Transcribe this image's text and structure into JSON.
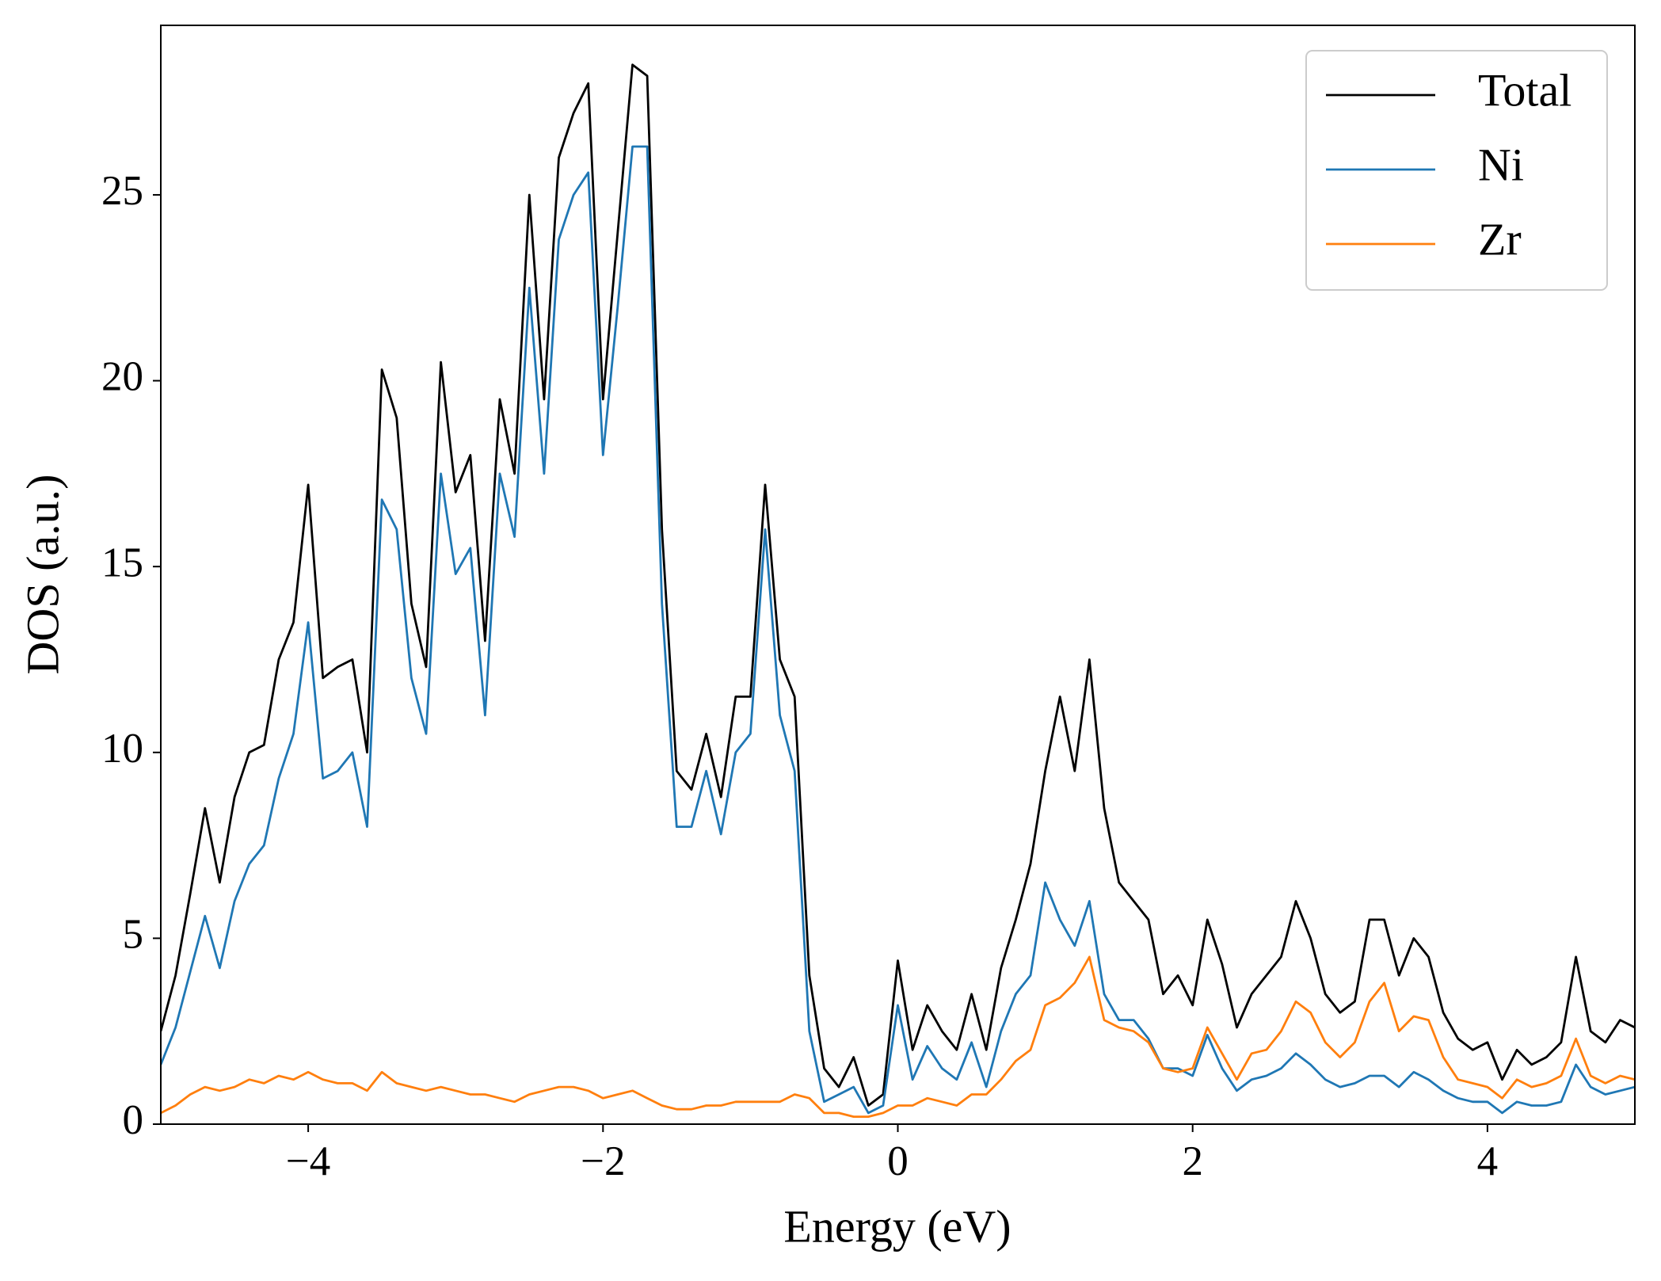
{
  "chart_data": {
    "type": "line",
    "xlabel": "Energy (eV)",
    "ylabel": "DOS (a.u.)",
    "x": [
      -5.0,
      -4.9,
      -4.8,
      -4.7,
      -4.6,
      -4.5,
      -4.4,
      -4.3,
      -4.2,
      -4.1,
      -4.0,
      -3.9,
      -3.8,
      -3.7,
      -3.6,
      -3.5,
      -3.4,
      -3.3,
      -3.2,
      -3.1,
      -3.0,
      -2.9,
      -2.8,
      -2.7,
      -2.6,
      -2.5,
      -2.4,
      -2.3,
      -2.2,
      -2.1,
      -2.0,
      -1.9,
      -1.8,
      -1.7,
      -1.6,
      -1.5,
      -1.4,
      -1.3,
      -1.2,
      -1.1,
      -1.0,
      -0.9,
      -0.8,
      -0.7,
      -0.6,
      -0.5,
      -0.4,
      -0.3,
      -0.2,
      -0.1,
      0.0,
      0.1,
      0.2,
      0.3,
      0.4,
      0.5,
      0.6,
      0.7,
      0.8,
      0.9,
      1.0,
      1.1,
      1.2,
      1.3,
      1.4,
      1.5,
      1.6,
      1.7,
      1.8,
      1.9,
      2.0,
      2.1,
      2.2,
      2.3,
      2.4,
      2.5,
      2.6,
      2.7,
      2.8,
      2.9,
      3.0,
      3.1,
      3.2,
      3.3,
      3.4,
      3.5,
      3.6,
      3.7,
      3.8,
      3.9,
      4.0,
      4.1,
      4.2,
      4.3,
      4.4,
      4.5,
      4.6,
      4.7,
      4.8,
      4.9,
      5.0
    ],
    "series": [
      {
        "name": "Total",
        "color": "#000000",
        "values": [
          2.5,
          4.0,
          6.2,
          8.5,
          6.5,
          8.8,
          10.0,
          10.2,
          12.5,
          13.5,
          17.2,
          12.0,
          12.3,
          12.5,
          10.0,
          20.3,
          19.0,
          14.0,
          12.3,
          20.5,
          17.0,
          18.0,
          13.0,
          19.5,
          17.5,
          25.0,
          19.5,
          26.0,
          27.2,
          28.0,
          19.5,
          24.0,
          28.5,
          28.2,
          16.0,
          9.5,
          9.0,
          10.5,
          8.8,
          11.5,
          11.5,
          17.2,
          12.5,
          11.5,
          4.0,
          1.5,
          1.0,
          1.8,
          0.5,
          0.8,
          4.4,
          2.0,
          3.2,
          2.5,
          2.0,
          3.5,
          2.0,
          4.2,
          5.5,
          7.0,
          9.5,
          11.5,
          9.5,
          12.5,
          8.5,
          6.5,
          6.0,
          5.5,
          3.5,
          4.0,
          3.2,
          5.5,
          4.3,
          2.6,
          3.5,
          4.0,
          4.5,
          6.0,
          5.0,
          3.5,
          3.0,
          3.3,
          5.5,
          5.5,
          4.0,
          5.0,
          4.5,
          3.0,
          2.3,
          2.0,
          2.2,
          1.2,
          2.0,
          1.6,
          1.8,
          2.2,
          4.5,
          2.5,
          2.2,
          2.8,
          2.6
        ]
      },
      {
        "name": "Ni",
        "color": "#1f77b4",
        "values": [
          1.6,
          2.6,
          4.1,
          5.6,
          4.2,
          6.0,
          7.0,
          7.5,
          9.3,
          10.5,
          13.5,
          9.3,
          9.5,
          10.0,
          8.0,
          16.8,
          16.0,
          12.0,
          10.5,
          17.5,
          14.8,
          15.5,
          11.0,
          17.5,
          15.8,
          22.5,
          17.5,
          23.8,
          25.0,
          25.6,
          18.0,
          22.0,
          26.3,
          26.3,
          14.0,
          8.0,
          8.0,
          9.5,
          7.8,
          10.0,
          10.5,
          16.0,
          11.0,
          9.5,
          2.5,
          0.6,
          0.8,
          1.0,
          0.3,
          0.5,
          3.2,
          1.2,
          2.1,
          1.5,
          1.2,
          2.2,
          1.0,
          2.5,
          3.5,
          4.0,
          6.5,
          5.5,
          4.8,
          6.0,
          3.5,
          2.8,
          2.8,
          2.3,
          1.5,
          1.5,
          1.3,
          2.4,
          1.5,
          0.9,
          1.2,
          1.3,
          1.5,
          1.9,
          1.6,
          1.2,
          1.0,
          1.1,
          1.3,
          1.3,
          1.0,
          1.4,
          1.2,
          0.9,
          0.7,
          0.6,
          0.6,
          0.3,
          0.6,
          0.5,
          0.5,
          0.6,
          1.6,
          1.0,
          0.8,
          0.9,
          1.0
        ]
      },
      {
        "name": "Zr",
        "color": "#ff7f0e",
        "values": [
          0.3,
          0.5,
          0.8,
          1.0,
          0.9,
          1.0,
          1.2,
          1.1,
          1.3,
          1.2,
          1.4,
          1.2,
          1.1,
          1.1,
          0.9,
          1.4,
          1.1,
          1.0,
          0.9,
          1.0,
          0.9,
          0.8,
          0.8,
          0.7,
          0.6,
          0.8,
          0.9,
          1.0,
          1.0,
          0.9,
          0.7,
          0.8,
          0.9,
          0.7,
          0.5,
          0.4,
          0.4,
          0.5,
          0.5,
          0.6,
          0.6,
          0.6,
          0.6,
          0.8,
          0.7,
          0.3,
          0.3,
          0.2,
          0.2,
          0.3,
          0.5,
          0.5,
          0.7,
          0.6,
          0.5,
          0.8,
          0.8,
          1.2,
          1.7,
          2.0,
          3.2,
          3.4,
          3.8,
          4.5,
          2.8,
          2.6,
          2.5,
          2.2,
          1.5,
          1.4,
          1.5,
          2.6,
          1.9,
          1.2,
          1.9,
          2.0,
          2.5,
          3.3,
          3.0,
          2.2,
          1.8,
          2.2,
          3.3,
          3.8,
          2.5,
          2.9,
          2.8,
          1.8,
          1.2,
          1.1,
          1.0,
          0.7,
          1.2,
          1.0,
          1.1,
          1.3,
          2.3,
          1.3,
          1.1,
          1.3,
          1.2
        ]
      }
    ],
    "xlim": [
      -5,
      5
    ],
    "xticks": [
      {
        "value": -4,
        "label": "−4"
      },
      {
        "value": -2,
        "label": "−2"
      },
      0,
      2,
      4
    ],
    "ylim": [
      0,
      29.56
    ],
    "yticks": [
      0,
      5,
      10,
      15,
      20,
      25
    ],
    "legend": "upper right"
  }
}
